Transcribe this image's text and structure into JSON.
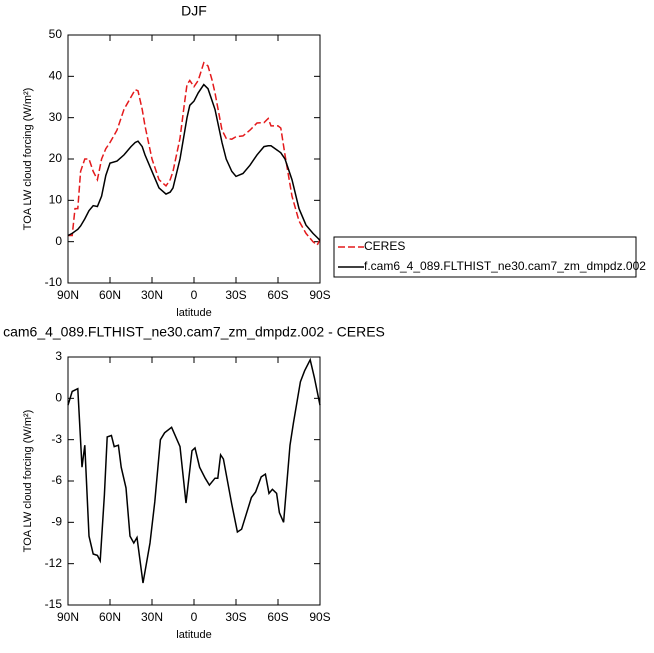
{
  "chart_data": [
    {
      "type": "line",
      "title": "DJF",
      "xlabel": "latitude",
      "ylabel": "TOA LW cloud forcing (W/m²)",
      "x": [
        90,
        87,
        85,
        83,
        81,
        78,
        75,
        72,
        69,
        66,
        63,
        60,
        55,
        50,
        45,
        42,
        40,
        37,
        35,
        30,
        25,
        20,
        17,
        15,
        10,
        7,
        5,
        3,
        0,
        -3,
        -7,
        -10,
        -13,
        -15,
        -20,
        -23,
        -27,
        -30,
        -35,
        -40,
        -45,
        -50,
        -53,
        -55,
        -60,
        -62,
        -65,
        -70,
        -75,
        -80,
        -85,
        -88,
        -90
      ],
      "series": [
        {
          "name": "CERES",
          "color": "#e41a1c",
          "dash": true,
          "values": [
            1.5,
            1.5,
            8,
            8,
            17,
            20,
            20,
            17,
            15,
            20,
            22.5,
            24,
            27,
            32,
            35,
            36.8,
            36.5,
            32,
            28,
            20,
            15,
            13.5,
            15,
            17,
            25,
            33,
            38,
            39,
            37.5,
            39,
            43.3,
            42.5,
            39,
            36,
            27,
            25,
            24.8,
            25.4,
            25.6,
            27,
            28.7,
            28.8,
            29.8,
            28,
            28,
            27.5,
            21,
            11,
            5,
            2,
            0,
            -0.8,
            0.5
          ]
        },
        {
          "name": "f.cam6_4_089.FLTHIST_ne30.cam7_zm_dmpdz.002",
          "color": "#000000",
          "dash": false,
          "values": [
            1.5,
            2,
            2.5,
            3,
            3.8,
            5.5,
            7.5,
            8.7,
            8.5,
            11,
            16,
            19,
            19.5,
            21,
            23,
            24,
            24.3,
            23,
            21,
            17,
            13,
            11.5,
            12,
            13,
            20,
            26,
            30,
            33,
            34,
            36,
            38,
            37,
            34,
            32,
            24,
            20,
            17,
            15.8,
            16.5,
            18.5,
            21,
            23,
            23.2,
            23.2,
            22,
            21.5,
            20,
            15,
            8,
            4,
            2,
            1,
            0.3
          ]
        }
      ],
      "xlim": [
        90,
        -90
      ],
      "xticks": [
        {
          "value": 90,
          "label": "90N"
        },
        {
          "value": 60,
          "label": "60N"
        },
        {
          "value": 30,
          "label": "30N"
        },
        0,
        {
          "value": -30,
          "label": "30S"
        },
        {
          "value": -60,
          "label": "60S"
        },
        {
          "value": -90,
          "label": "90S"
        }
      ],
      "ylim": [
        -10,
        50
      ],
      "yticks": [
        -10,
        0,
        10,
        20,
        30,
        40,
        50
      ],
      "legend": "right"
    },
    {
      "type": "line",
      "title": "cam6_4_089.FLTHIST_ne30.cam7_zm_dmpdz.002 - CERES",
      "xlabel": "latitude",
      "ylabel": "TOA LW cloud forcing (W/m²)",
      "x": [
        90,
        87,
        83,
        80,
        78,
        75,
        72,
        69,
        67,
        64,
        62,
        59,
        57,
        54,
        52,
        48.6,
        45.7,
        43,
        40.7,
        36.4,
        31.4,
        28,
        24,
        21,
        16,
        10,
        5.7,
        1.4,
        -0.7,
        -4,
        -8,
        -11,
        -15,
        -17,
        -19,
        -21,
        -27,
        -31,
        -34,
        -41,
        -44,
        -48,
        -51,
        -53.6,
        -56,
        -59,
        -61,
        -64,
        -68.6,
        -71,
        -76,
        -79,
        -83,
        -86,
        -90
      ],
      "values": [
        -0.5,
        0.5,
        0.7,
        -5,
        -3.4,
        -10,
        -11.3,
        -11.4,
        -11.8,
        -7,
        -2.8,
        -2.7,
        -3.5,
        -3.4,
        -5,
        -6.5,
        -10,
        -10.5,
        -10.1,
        -13.4,
        -10.5,
        -7.5,
        -3,
        -2.5,
        -2.1,
        -3.5,
        -7.6,
        -3.8,
        -3.6,
        -5,
        -5.8,
        -6.3,
        -5.8,
        -5.8,
        -4.1,
        -4.4,
        -7.7,
        -9.7,
        -9.5,
        -7.2,
        -6.8,
        -5.7,
        -5.5,
        -6.9,
        -6.6,
        -6.9,
        -8.3,
        -9,
        -3.4,
        -1.8,
        1.2,
        2,
        2.8,
        1.5,
        -0.5
      ],
      "color": "#000000",
      "xlim": [
        90,
        -90
      ],
      "xticks": [
        {
          "value": 90,
          "label": "90N"
        },
        {
          "value": 60,
          "label": "60N"
        },
        {
          "value": 30,
          "label": "30N"
        },
        0,
        {
          "value": -30,
          "label": "30S"
        },
        {
          "value": -60,
          "label": "60S"
        },
        {
          "value": -90,
          "label": "90S"
        }
      ],
      "ylim": [
        -15,
        3
      ],
      "yticks": [
        -15,
        -12,
        -9,
        -6,
        -3,
        0,
        3
      ]
    }
  ]
}
